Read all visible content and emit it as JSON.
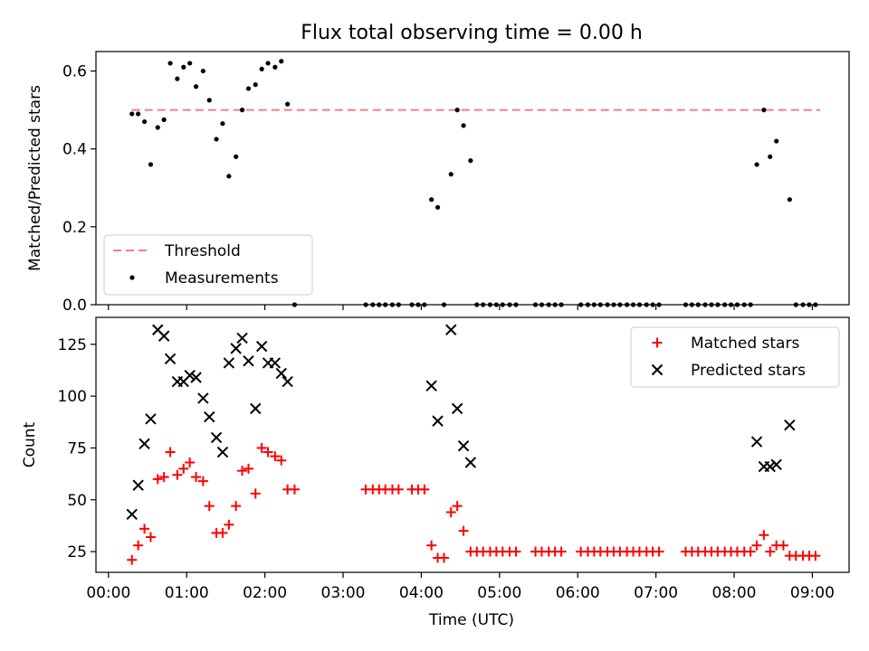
{
  "title": "Flux total observing time = 0.00 h",
  "colors": {
    "threshold": "#f08080",
    "measurement": "#000000",
    "matched": "#ff0000",
    "predicted": "#000000"
  },
  "chart_data": [
    {
      "type": "scatter",
      "ylabel": "Matched/Predicted stars",
      "ylim": [
        0,
        0.65
      ],
      "yticks": [
        0.0,
        0.2,
        0.4,
        0.6
      ],
      "ytick_labels": [
        "0.0",
        "0.2",
        "0.4",
        "0.6"
      ],
      "xlim": [
        -0.16,
        9.47
      ],
      "grid": false,
      "legend_placement": "lower-left",
      "threshold": {
        "name": "Threshold",
        "value": 0.5,
        "x_range": [
          0.3,
          9.1
        ]
      },
      "measurements": {
        "name": "Measurements",
        "points": [
          [
            0.3,
            0.49
          ],
          [
            0.38,
            0.49
          ],
          [
            0.46,
            0.47
          ],
          [
            0.54,
            0.36
          ],
          [
            0.63,
            0.455
          ],
          [
            0.71,
            0.475
          ],
          [
            0.79,
            0.62
          ],
          [
            0.88,
            0.58
          ],
          [
            0.96,
            0.61
          ],
          [
            1.04,
            0.62
          ],
          [
            1.12,
            0.56
          ],
          [
            1.21,
            0.6
          ],
          [
            1.29,
            0.525
          ],
          [
            1.38,
            0.425
          ],
          [
            1.46,
            0.465
          ],
          [
            1.54,
            0.33
          ],
          [
            1.63,
            0.38
          ],
          [
            1.71,
            0.5
          ],
          [
            1.79,
            0.555
          ],
          [
            1.88,
            0.565
          ],
          [
            1.96,
            0.605
          ],
          [
            2.04,
            0.62
          ],
          [
            2.13,
            0.61
          ],
          [
            2.21,
            0.625
          ],
          [
            2.29,
            0.515
          ],
          [
            2.38,
            0.0
          ],
          [
            3.29,
            0.0
          ],
          [
            3.38,
            0.0
          ],
          [
            3.46,
            0.0
          ],
          [
            3.54,
            0.0
          ],
          [
            3.63,
            0.0
          ],
          [
            3.71,
            0.0
          ],
          [
            3.88,
            0.0
          ],
          [
            3.96,
            0.0
          ],
          [
            4.04,
            0.0
          ],
          [
            4.13,
            0.27
          ],
          [
            4.21,
            0.25
          ],
          [
            4.29,
            0.0
          ],
          [
            4.38,
            0.335
          ],
          [
            4.46,
            0.5
          ],
          [
            4.54,
            0.46
          ],
          [
            4.63,
            0.37
          ],
          [
            4.71,
            0.0
          ],
          [
            4.79,
            0.0
          ],
          [
            4.88,
            0.0
          ],
          [
            4.96,
            0.0
          ],
          [
            5.04,
            0.0
          ],
          [
            5.13,
            0.0
          ],
          [
            5.21,
            0.0
          ],
          [
            5.46,
            0.0
          ],
          [
            5.54,
            0.0
          ],
          [
            5.63,
            0.0
          ],
          [
            5.71,
            0.0
          ],
          [
            5.79,
            0.0
          ],
          [
            6.04,
            0.0
          ],
          [
            6.13,
            0.0
          ],
          [
            6.21,
            0.0
          ],
          [
            6.29,
            0.0
          ],
          [
            6.38,
            0.0
          ],
          [
            6.46,
            0.0
          ],
          [
            6.54,
            0.0
          ],
          [
            6.63,
            0.0
          ],
          [
            6.71,
            0.0
          ],
          [
            6.79,
            0.0
          ],
          [
            6.88,
            0.0
          ],
          [
            6.96,
            0.0
          ],
          [
            7.04,
            0.0
          ],
          [
            7.38,
            0.0
          ],
          [
            7.46,
            0.0
          ],
          [
            7.54,
            0.0
          ],
          [
            7.63,
            0.0
          ],
          [
            7.71,
            0.0
          ],
          [
            7.79,
            0.0
          ],
          [
            7.88,
            0.0
          ],
          [
            7.96,
            0.0
          ],
          [
            8.04,
            0.0
          ],
          [
            8.13,
            0.0
          ],
          [
            8.21,
            0.0
          ],
          [
            8.29,
            0.36
          ],
          [
            8.38,
            0.5
          ],
          [
            8.46,
            0.38
          ],
          [
            8.54,
            0.42
          ],
          [
            8.71,
            0.27
          ],
          [
            8.79,
            0.0
          ],
          [
            8.88,
            0.0
          ],
          [
            8.96,
            0.0
          ],
          [
            9.04,
            0.0
          ]
        ]
      }
    },
    {
      "type": "scatter",
      "ylabel": "Count",
      "xlabel": "Time (UTC)",
      "ylim": [
        15,
        138
      ],
      "yticks": [
        25,
        50,
        75,
        100,
        125
      ],
      "ytick_labels": [
        "25",
        "50",
        "75",
        "100",
        "125"
      ],
      "xlim": [
        -0.16,
        9.47
      ],
      "xticks": [
        0,
        1,
        2,
        3,
        4,
        5,
        6,
        7,
        8,
        9
      ],
      "xtick_labels": [
        "00:00",
        "01:00",
        "02:00",
        "03:00",
        "04:00",
        "05:00",
        "06:00",
        "07:00",
        "08:00",
        "09:00"
      ],
      "grid": false,
      "legend_placement": "upper-right",
      "series": [
        {
          "name": "Matched stars",
          "marker": "plus",
          "points": [
            [
              0.3,
              21
            ],
            [
              0.38,
              28
            ],
            [
              0.46,
              36
            ],
            [
              0.54,
              32
            ],
            [
              0.63,
              60
            ],
            [
              0.71,
              61
            ],
            [
              0.79,
              73
            ],
            [
              0.88,
              62
            ],
            [
              0.96,
              65
            ],
            [
              1.04,
              68
            ],
            [
              1.12,
              61
            ],
            [
              1.21,
              59
            ],
            [
              1.29,
              47
            ],
            [
              1.38,
              34
            ],
            [
              1.46,
              34
            ],
            [
              1.54,
              38
            ],
            [
              1.63,
              47
            ],
            [
              1.71,
              64
            ],
            [
              1.79,
              65
            ],
            [
              1.88,
              53
            ],
            [
              1.96,
              75
            ],
            [
              2.04,
              73
            ],
            [
              2.13,
              71
            ],
            [
              2.21,
              69
            ],
            [
              2.29,
              55
            ],
            [
              2.38,
              55
            ],
            [
              3.29,
              55
            ],
            [
              3.38,
              55
            ],
            [
              3.46,
              55
            ],
            [
              3.54,
              55
            ],
            [
              3.63,
              55
            ],
            [
              3.71,
              55
            ],
            [
              3.88,
              55
            ],
            [
              3.96,
              55
            ],
            [
              4.04,
              55
            ],
            [
              4.13,
              28
            ],
            [
              4.21,
              22
            ],
            [
              4.29,
              22
            ],
            [
              4.38,
              44
            ],
            [
              4.46,
              47
            ],
            [
              4.54,
              35
            ],
            [
              4.63,
              25
            ],
            [
              4.71,
              25
            ],
            [
              4.79,
              25
            ],
            [
              4.88,
              25
            ],
            [
              4.96,
              25
            ],
            [
              5.04,
              25
            ],
            [
              5.13,
              25
            ],
            [
              5.21,
              25
            ],
            [
              5.46,
              25
            ],
            [
              5.54,
              25
            ],
            [
              5.63,
              25
            ],
            [
              5.71,
              25
            ],
            [
              5.79,
              25
            ],
            [
              6.04,
              25
            ],
            [
              6.13,
              25
            ],
            [
              6.21,
              25
            ],
            [
              6.29,
              25
            ],
            [
              6.38,
              25
            ],
            [
              6.46,
              25
            ],
            [
              6.54,
              25
            ],
            [
              6.63,
              25
            ],
            [
              6.71,
              25
            ],
            [
              6.79,
              25
            ],
            [
              6.88,
              25
            ],
            [
              6.96,
              25
            ],
            [
              7.04,
              25
            ],
            [
              7.38,
              25
            ],
            [
              7.46,
              25
            ],
            [
              7.54,
              25
            ],
            [
              7.63,
              25
            ],
            [
              7.71,
              25
            ],
            [
              7.79,
              25
            ],
            [
              7.88,
              25
            ],
            [
              7.96,
              25
            ],
            [
              8.04,
              25
            ],
            [
              8.13,
              25
            ],
            [
              8.21,
              25
            ],
            [
              8.29,
              28
            ],
            [
              8.38,
              33
            ],
            [
              8.46,
              25
            ],
            [
              8.54,
              28
            ],
            [
              8.63,
              28
            ],
            [
              8.71,
              23
            ],
            [
              8.79,
              23
            ],
            [
              8.88,
              23
            ],
            [
              8.96,
              23
            ],
            [
              9.04,
              23
            ]
          ]
        },
        {
          "name": "Predicted stars",
          "marker": "x",
          "points": [
            [
              0.3,
              43
            ],
            [
              0.38,
              57
            ],
            [
              0.46,
              77
            ],
            [
              0.54,
              89
            ],
            [
              0.63,
              132
            ],
            [
              0.71,
              129
            ],
            [
              0.79,
              118
            ],
            [
              0.88,
              107
            ],
            [
              0.96,
              107
            ],
            [
              1.04,
              110
            ],
            [
              1.12,
              109
            ],
            [
              1.21,
              99
            ],
            [
              1.29,
              90
            ],
            [
              1.38,
              80
            ],
            [
              1.46,
              73
            ],
            [
              1.54,
              116
            ],
            [
              1.63,
              123
            ],
            [
              1.71,
              128
            ],
            [
              1.79,
              117
            ],
            [
              1.88,
              94
            ],
            [
              1.96,
              124
            ],
            [
              2.04,
              116
            ],
            [
              2.13,
              116
            ],
            [
              2.21,
              111
            ],
            [
              2.29,
              107
            ],
            [
              4.13,
              105
            ],
            [
              4.21,
              88
            ],
            [
              4.38,
              132
            ],
            [
              4.46,
              94
            ],
            [
              4.54,
              76
            ],
            [
              4.63,
              68
            ],
            [
              8.29,
              78
            ],
            [
              8.38,
              66
            ],
            [
              8.46,
              66
            ],
            [
              8.54,
              67
            ],
            [
              8.71,
              86
            ]
          ]
        }
      ]
    }
  ]
}
